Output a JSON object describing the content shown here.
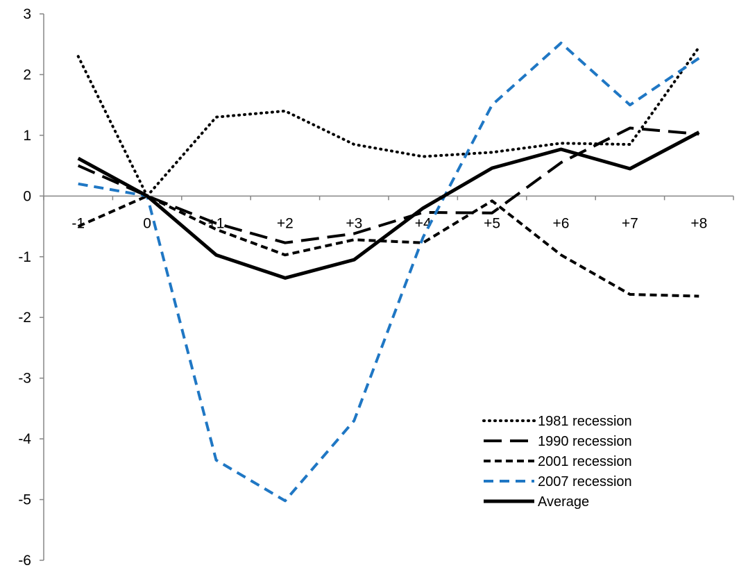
{
  "chart_data": {
    "type": "line",
    "title": "",
    "xlabel": "",
    "ylabel": "",
    "categories": [
      "-1",
      "0",
      "+1",
      "+2",
      "+3",
      "+4",
      "+5",
      "+6",
      "+7",
      "+8"
    ],
    "ylim": [
      -6,
      3
    ],
    "yticks": [
      3,
      2,
      1,
      0,
      -1,
      -2,
      -3,
      -4,
      -5,
      -6
    ],
    "grid": false,
    "legend_position": "bottom-right",
    "series": [
      {
        "name": "1981 recession",
        "values": [
          2.3,
          0.0,
          1.3,
          1.4,
          0.85,
          0.65,
          0.72,
          0.87,
          0.85,
          2.45
        ],
        "color": "#000000",
        "style": "dotted"
      },
      {
        "name": "1990 recession",
        "values": [
          0.5,
          0.0,
          -0.45,
          -0.77,
          -0.62,
          -0.27,
          -0.28,
          0.55,
          1.12,
          1.02
        ],
        "color": "#000000",
        "style": "long-dash"
      },
      {
        "name": "2001 recession",
        "values": [
          -0.5,
          0.0,
          -0.55,
          -0.97,
          -0.72,
          -0.77,
          -0.08,
          -0.97,
          -1.62,
          -1.65
        ],
        "color": "#000000",
        "style": "short-dash"
      },
      {
        "name": "2007 recession",
        "values": [
          0.2,
          0.0,
          -4.35,
          -5.02,
          -3.7,
          -0.68,
          1.5,
          2.52,
          1.5,
          2.27
        ],
        "color": "#1f77c4",
        "style": "dash"
      },
      {
        "name": "Average",
        "values": [
          0.62,
          0.0,
          -0.97,
          -1.35,
          -1.05,
          -0.2,
          0.46,
          0.77,
          0.45,
          1.05
        ],
        "color": "#000000",
        "style": "solid"
      }
    ]
  }
}
